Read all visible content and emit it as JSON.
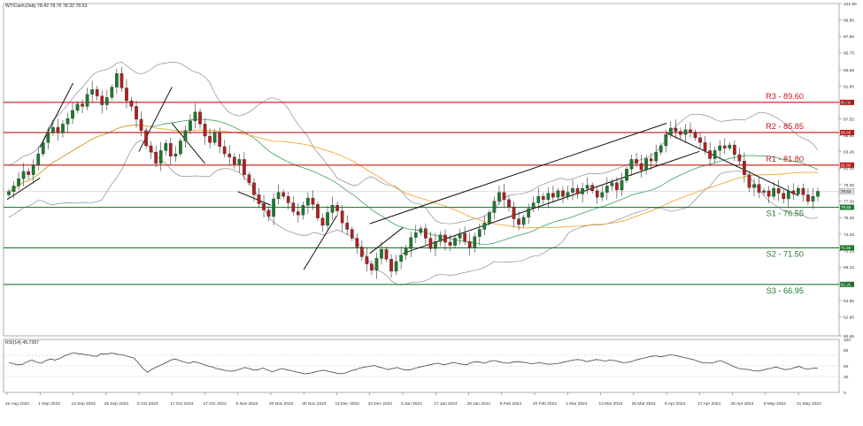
{
  "header": {
    "symbol_info": "WTICash,Daily  78.42 78.76 78.32 78.53",
    "rsi_info": "RSI(14) 45.7397"
  },
  "colors": {
    "bull": "#1e7a2e",
    "bear": "#b02020",
    "resistance": "#c01818",
    "support": "#1e7a2e",
    "bollinger": "#8a8aa0",
    "ma_slow": "#f0a020",
    "ma_fast": "#3aa05a",
    "trendline": "#111111",
    "rsi_line": "#444444"
  },
  "chart_data": [
    {
      "type": "candlestick",
      "title": "WTICash,Daily",
      "ylim": [
        60.55,
        101.9
      ],
      "y_ticks": [
        "101.90",
        "99.85",
        "97.80",
        "95.75",
        "93.65",
        "91.60",
        "89.60",
        "87.55",
        "85.50",
        "83.45",
        "81.40",
        "79.35",
        "77.30",
        "75.25",
        "73.20",
        "71.15",
        "69.10",
        "67.05",
        "64.95",
        "62.90",
        "60.55"
      ],
      "x_labels": [
        "22 Aug 2023",
        "1 Sep 2023",
        "13 Sep 2023",
        "25 Sep 2023",
        "5 Oct 2023",
        "17 Oct 2023",
        "27 Oct 2023",
        "8 Nov 2023",
        "20 Nov 2023",
        "30 Nov 2023",
        "12 Dec 2023",
        "22 Dec 2023",
        "5 Jan 2024",
        "17 Jan 2024",
        "29 Jan 2024",
        "8 Feb 2024",
        "20 Feb 2024",
        "1 Mar 2024",
        "13 Mar 2024",
        "25 Mar 2024",
        "5 Apr 2024",
        "17 Apr 2024",
        "29 Apr 2024",
        "9 May 2024",
        "21 May 2024"
      ],
      "closes": [
        78.5,
        79.2,
        80.1,
        81.0,
        80.6,
        81.8,
        83.2,
        84.6,
        85.9,
        86.5,
        85.8,
        86.9,
        87.6,
        88.6,
        89.4,
        89.1,
        90.6,
        91.2,
        90.4,
        89.3,
        90.2,
        91.5,
        93.2,
        91.4,
        89.8,
        89.1,
        87.5,
        86.1,
        84.2,
        83.4,
        82.0,
        83.6,
        84.5,
        82.9,
        83.2,
        84.8,
        86.1,
        87.3,
        88.4,
        86.9,
        85.4,
        84.6,
        85.9,
        84.1,
        83.2,
        82.8,
        81.9,
        82.5,
        80.6,
        79.6,
        78.1,
        77.0,
        76.2,
        75.4,
        77.6,
        78.4,
        77.9,
        77.1,
        76.0,
        75.6,
        76.8,
        77.7,
        76.9,
        75.2,
        74.3,
        75.9,
        76.8,
        76.1,
        74.6,
        73.8,
        72.7,
        71.6,
        70.4,
        69.5,
        68.7,
        70.2,
        71.3,
        70.1,
        68.6,
        69.8,
        70.6,
        71.4,
        72.8,
        73.4,
        73.9,
        72.7,
        71.4,
        72.3,
        73.1,
        72.2,
        71.8,
        72.7,
        73.3,
        72.3,
        71.5,
        72.9,
        73.8,
        74.6,
        75.9,
        77.3,
        78.4,
        77.5,
        76.6,
        75.1,
        74.4,
        75.3,
        76.4,
        77.1,
        77.9,
        77.5,
        78.3,
        77.8,
        78.6,
        77.9,
        78.4,
        78.9,
        78.2,
        78.9,
        79.3,
        78.6,
        77.8,
        78.4,
        79.2,
        79.6,
        78.7,
        79.9,
        81.3,
        82.5,
        82.0,
        81.2,
        82.6,
        82.3,
        83.4,
        84.2,
        85.6,
        86.4,
        86.0,
        85.6,
        86.2,
        85.9,
        85.2,
        84.6,
        83.6,
        82.6,
        83.6,
        84.2,
        83.9,
        84.3,
        83.1,
        82.3,
        80.6,
        79.0,
        79.4,
        78.4,
        78.6,
        77.9,
        78.9,
        78.3,
        77.6,
        78.6,
        78.2,
        78.9,
        78.1,
        77.3,
        77.9,
        78.53
      ],
      "reference_levels": [
        {
          "label": "R3 - 89.60",
          "value": 89.6,
          "kind": "resistance",
          "tag": "89.60"
        },
        {
          "label": "R2 - 85.85",
          "value": 85.85,
          "kind": "resistance",
          "tag": "85.85"
        },
        {
          "label": "R1 - 81.80",
          "value": 81.8,
          "kind": "resistance",
          "tag": "81.80"
        },
        {
          "label": "S1 - 76.55",
          "value": 76.55,
          "kind": "support",
          "tag": "76.55"
        },
        {
          "label": "S2 - 71.50",
          "value": 71.5,
          "kind": "support",
          "tag": "71.50"
        },
        {
          "label": "S3 - 66.95",
          "value": 66.95,
          "kind": "support",
          "tag": "66.95"
        }
      ],
      "last_price_tag": "78.53",
      "indicators": [
        "Bollinger Bands",
        "Moving Average (fast)",
        "Moving Average (slow)"
      ],
      "trendlines": [
        {
          "from": {
            "x": "22 Aug 2023",
            "y": 77.5
          },
          "to": {
            "x": "1 Sep 2023",
            "y": 80.2
          }
        },
        {
          "from": {
            "x": "1 Sep 2023",
            "y": 84.0
          },
          "to": {
            "x": "13 Sep 2023",
            "y": 92.0
          }
        },
        {
          "from": {
            "x": "5 Oct 2023",
            "y": 83.5
          },
          "to": {
            "x": "17 Oct 2023",
            "y": 91.5
          }
        },
        {
          "from": {
            "x": "17 Oct 2023",
            "y": 87.0
          },
          "to": {
            "x": "27 Oct 2023",
            "y": 82.0
          }
        },
        {
          "from": {
            "x": "8 Nov 2023",
            "y": 78.5
          },
          "to": {
            "x": "20 Nov 2023",
            "y": 76.8
          }
        },
        {
          "from": {
            "x": "30 Nov 2023",
            "y": 68.8
          },
          "to": {
            "x": "12 Dec 2023",
            "y": 75.5
          }
        },
        {
          "from": {
            "x": "22 Dec 2023",
            "y": 70.8
          },
          "to": {
            "x": "5 Jan 2024",
            "y": 74.0
          }
        },
        {
          "from": {
            "x": "22 Dec 2023",
            "y": 74.5
          },
          "to": {
            "x": "5 Apr 2024",
            "y": 87.0
          }
        },
        {
          "from": {
            "x": "5 Jan 2024",
            "y": 70.8
          },
          "to": {
            "x": "17 Apr 2024",
            "y": 83.5
          }
        },
        {
          "from": {
            "x": "5 Apr 2024",
            "y": 85.8
          },
          "to": {
            "x": "21 May 2024",
            "y": 78.0
          }
        }
      ]
    },
    {
      "type": "line",
      "title": "RSI(14)",
      "ylim": [
        0,
        100
      ],
      "y_ticks": [
        "100",
        "80",
        "50",
        "30",
        "0"
      ],
      "levels": [
        70,
        50,
        30
      ],
      "values": [
        56,
        54,
        52,
        53,
        58,
        61,
        57,
        55,
        60,
        63,
        61,
        64,
        69,
        72,
        75,
        73,
        72,
        71,
        69,
        68,
        73,
        72,
        74,
        73,
        71,
        70,
        67,
        65,
        56,
        45,
        38,
        44,
        48,
        52,
        56,
        61,
        63,
        60,
        57,
        55,
        58,
        56,
        53,
        50,
        48,
        45,
        43,
        41,
        40,
        41,
        44,
        47,
        45,
        42,
        43,
        46,
        42,
        39,
        42,
        45,
        43,
        41,
        39,
        37,
        35,
        36,
        38,
        40,
        42,
        40,
        38,
        36,
        35,
        37,
        41,
        43,
        46,
        48,
        49,
        51,
        48,
        46,
        43,
        45,
        47,
        44,
        42,
        43,
        46,
        48,
        50,
        52,
        54,
        55,
        52,
        54,
        56,
        55,
        53,
        52,
        56,
        58,
        57,
        55,
        59,
        60,
        58,
        56,
        55,
        57,
        58,
        57,
        56,
        54,
        55,
        56,
        54,
        53,
        54,
        55,
        57,
        59,
        61,
        62,
        61,
        58,
        60,
        62,
        61,
        59,
        61,
        60,
        58,
        56,
        57,
        59,
        62,
        64,
        66,
        68,
        69,
        67,
        69,
        71,
        70,
        68,
        66,
        64,
        62,
        59,
        56,
        56,
        55,
        58,
        60,
        56,
        52,
        48,
        45,
        44,
        43,
        41,
        40,
        42,
        44,
        46,
        48,
        45,
        43,
        44,
        47,
        49,
        45,
        44,
        46,
        45.7
      ]
    }
  ]
}
